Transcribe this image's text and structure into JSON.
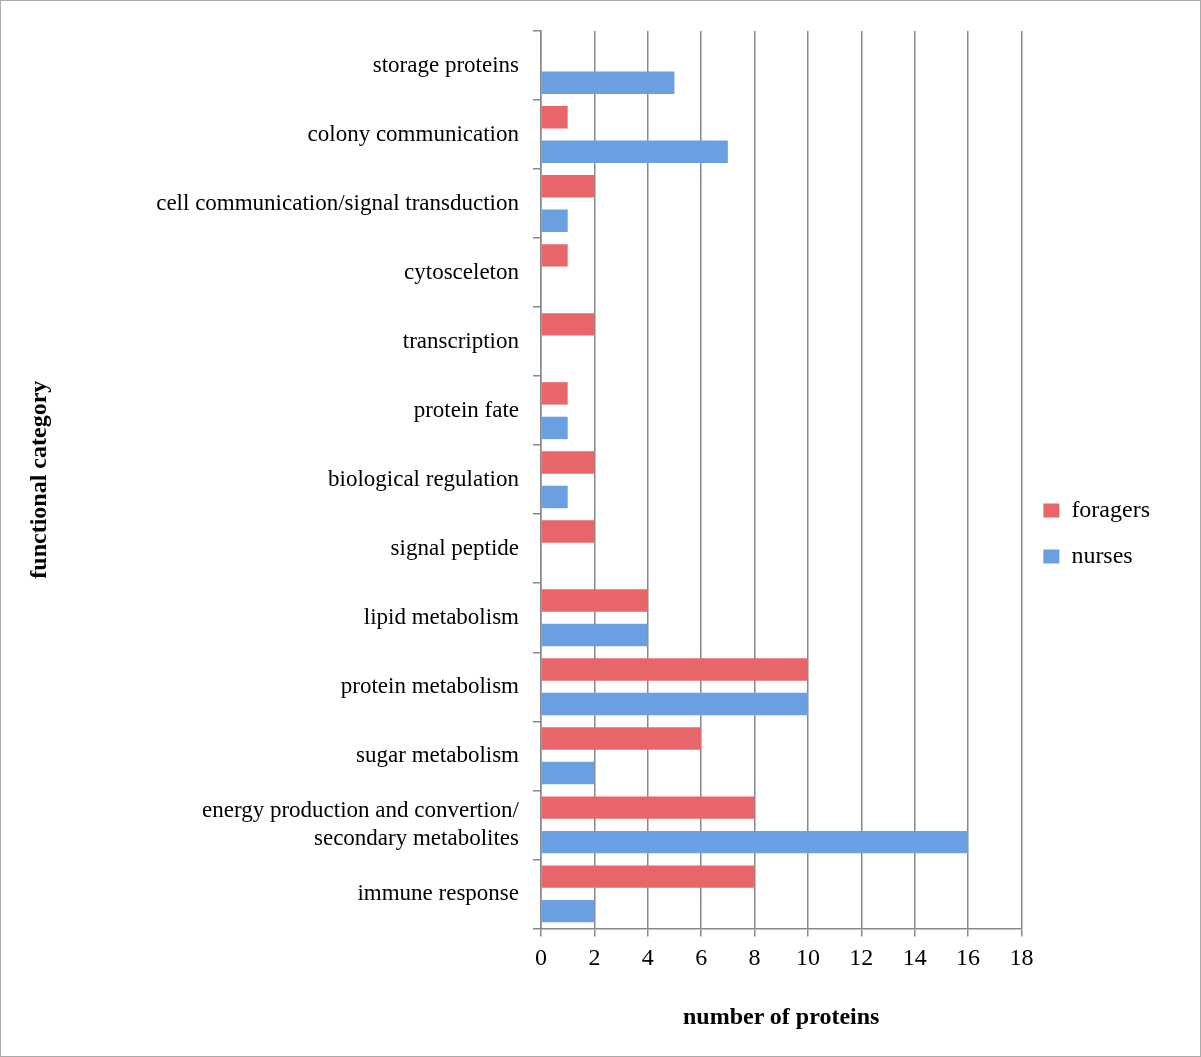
{
  "chart_data": {
    "type": "bar",
    "orientation": "horizontal",
    "xlabel": "number of proteins",
    "ylabel": "functional category",
    "categories": [
      "storage proteins",
      "colony communication",
      "cell communication/signal transduction",
      "cytosceleton",
      "transcription",
      "protein fate",
      "biological regulation",
      "signal peptide",
      "lipid metabolism",
      "protein metabolism",
      "sugar metabolism",
      "energy production and convertion/ secondary metabolites",
      "immune response"
    ],
    "series": [
      {
        "name": "foragers",
        "color": "#e8666a",
        "values": [
          0,
          1,
          2,
          1,
          2,
          1,
          2,
          2,
          4,
          10,
          6,
          8,
          8
        ]
      },
      {
        "name": "nurses",
        "color": "#6a9fe2",
        "values": [
          5,
          7,
          1,
          0,
          0,
          1,
          1,
          0,
          4,
          10,
          2,
          16,
          2
        ]
      }
    ],
    "xlim": [
      0,
      18
    ],
    "xticks": [
      0,
      2,
      4,
      6,
      8,
      10,
      12,
      14,
      16,
      18
    ],
    "grid": "x",
    "legend": "right"
  }
}
